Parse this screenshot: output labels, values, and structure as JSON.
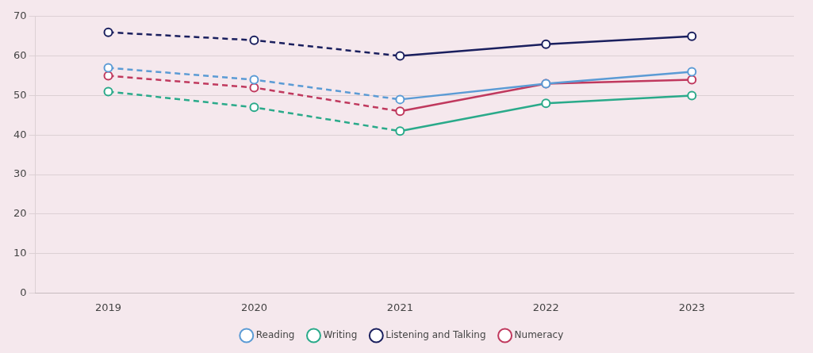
{
  "chart_data": {
    "type": "line",
    "x": [
      2019,
      2020,
      2021,
      2022,
      2023
    ],
    "series": [
      {
        "name": "Reading",
        "color": "#5b9bd5",
        "marker": "circle",
        "values": [
          57,
          54,
          49,
          53,
          56
        ]
      },
      {
        "name": "Writing",
        "color": "#2aaa8a",
        "marker": "circle",
        "values": [
          51,
          47,
          41,
          48,
          50
        ]
      },
      {
        "name": "Listening and Talking",
        "color": "#1a1f5e",
        "marker": "circle",
        "values": [
          66,
          64,
          60,
          63,
          65
        ]
      },
      {
        "name": "Numeracy",
        "color": "#c0395e",
        "marker": "circle",
        "values": [
          55,
          52,
          46,
          53,
          54
        ]
      }
    ],
    "xlim": [
      2018.5,
      2023.7
    ],
    "xticks": [
      2019,
      2020,
      2021,
      2022,
      2023
    ],
    "ylim": [
      0,
      70
    ],
    "yticks": [
      0,
      10,
      20,
      30,
      40,
      50,
      60,
      70
    ],
    "grid": true,
    "legend": "bottom"
  }
}
